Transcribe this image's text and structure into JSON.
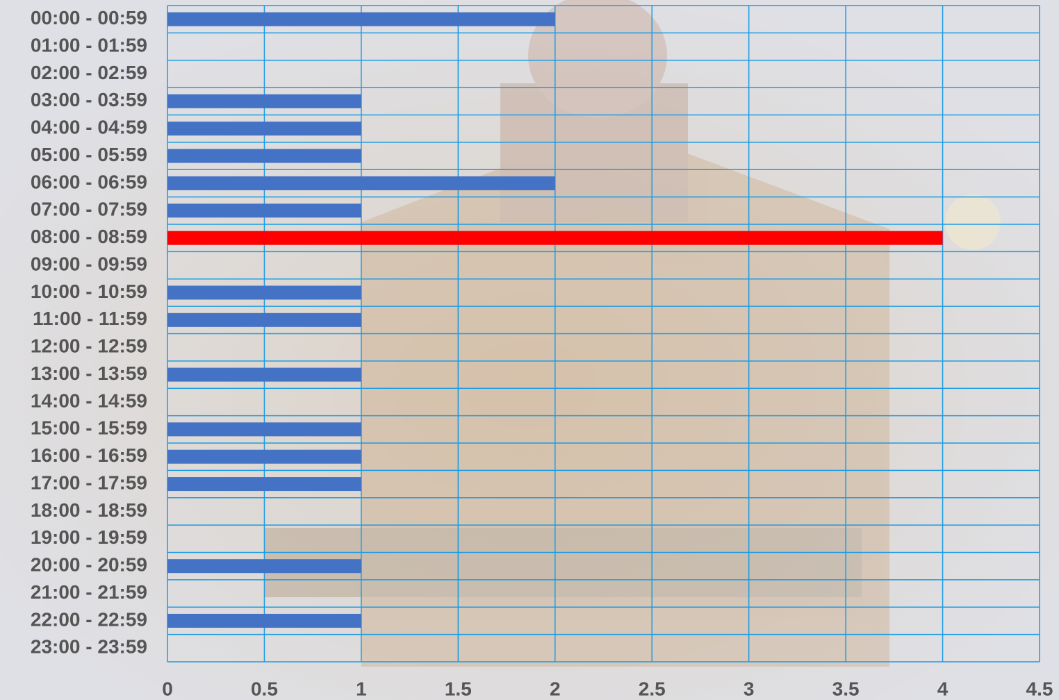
{
  "chart_data": {
    "type": "barh",
    "categories": [
      "00:00 - 00:59",
      "01:00 - 01:59",
      "02:00 - 02:59",
      "03:00 - 03:59",
      "04:00 - 04:59",
      "05:00 - 05:59",
      "06:00 - 06:59",
      "07:00 - 07:59",
      "08:00 - 08:59",
      "09:00 - 09:59",
      "10:00 - 10:59",
      "11:00 - 11:59",
      "12:00 - 12:59",
      "13:00 - 13:59",
      "14:00 - 14:59",
      "15:00 - 15:59",
      "16:00 - 16:59",
      "17:00 - 17:59",
      "18:00 - 18:59",
      "19:00 - 19:59",
      "20:00 - 20:59",
      "21:00 - 21:59",
      "22:00 - 22:59",
      "23:00 - 23:59"
    ],
    "values": [
      2,
      0,
      0,
      1,
      1,
      1,
      2,
      1,
      4,
      0,
      1,
      1,
      0,
      1,
      0,
      1,
      1,
      1,
      0,
      0,
      1,
      0,
      1,
      0
    ],
    "colors": [
      "#4472c4",
      "#4472c4",
      "#4472c4",
      "#4472c4",
      "#4472c4",
      "#4472c4",
      "#4472c4",
      "#4472c4",
      "#ff0000",
      "#4472c4",
      "#4472c4",
      "#4472c4",
      "#4472c4",
      "#4472c4",
      "#4472c4",
      "#4472c4",
      "#4472c4",
      "#4472c4",
      "#4472c4",
      "#4472c4",
      "#4472c4",
      "#4472c4",
      "#4472c4",
      "#4472c4"
    ],
    "xlim": [
      0,
      4.5
    ],
    "xticks": [
      0,
      0.5,
      1,
      1.5,
      2,
      2.5,
      3,
      3.5,
      4,
      4.5
    ],
    "grid": true,
    "grid_color": "#1c9be3"
  }
}
